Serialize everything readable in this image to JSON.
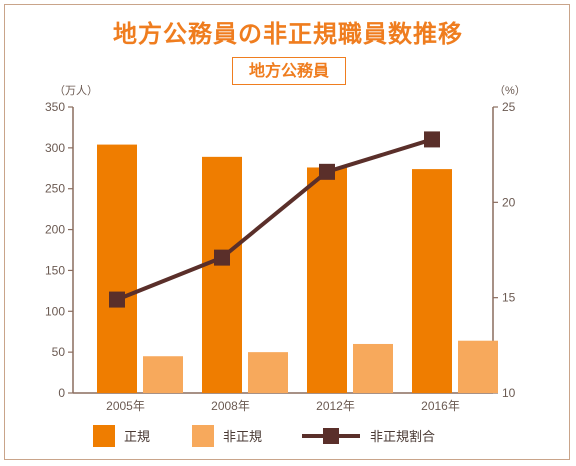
{
  "title": "地方公務員の非正規職員数推移",
  "subtitle": "地方公務員",
  "chart_data": {
    "type": "bar",
    "categories": [
      "2005年",
      "2008年",
      "2012年",
      "2016年"
    ],
    "series": [
      {
        "name": "正規",
        "type": "bar",
        "axis": "left",
        "color": "#ef7d00",
        "values": [
          304,
          289,
          276,
          274
        ]
      },
      {
        "name": "非正規",
        "type": "bar",
        "axis": "left",
        "color": "#f7a95c",
        "values": [
          45,
          50,
          60,
          64
        ]
      },
      {
        "name": "非正規割合",
        "type": "line",
        "axis": "right",
        "color": "#5a2f2a",
        "values": [
          14.9,
          17.1,
          21.6,
          23.3
        ]
      }
    ],
    "y_left": {
      "unit": "（万人）",
      "min": 0,
      "max": 350,
      "ticks": [
        0,
        50,
        100,
        150,
        200,
        250,
        300,
        350
      ]
    },
    "y_right": {
      "unit": "（%）",
      "min": 10,
      "max": 25,
      "ticks": [
        10,
        15,
        20,
        25
      ]
    },
    "grid": false,
    "legend_position": "bottom"
  },
  "colors": {
    "title": "#ef7d1f",
    "frame_border": "#c9a48a",
    "axis": "#8a6d5f",
    "tick_text": "#6b5a52"
  }
}
